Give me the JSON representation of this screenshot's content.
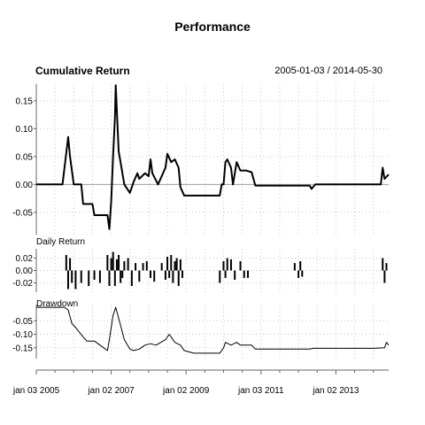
{
  "figure": {
    "title": "Performance",
    "date_range": "2005-01-03 / 2014-05-30"
  },
  "chart_data": [
    {
      "type": "line",
      "title": "Cumulative Return",
      "ylim": [
        -0.09,
        0.18
      ],
      "yticks": [
        0.15,
        0.1,
        0.05,
        0.0,
        -0.05
      ],
      "ytick_labels": [
        "0.15",
        "0.10",
        "0.05",
        "0.00",
        "-0.05"
      ],
      "baseline": 0,
      "grid": true,
      "series": [
        {
          "x": [
            2005.0,
            2005.7,
            2005.85,
            2005.9,
            2006.0,
            2006.1,
            2006.2,
            2006.25,
            2006.5,
            2006.55,
            2006.9,
            2006.95,
            2007.0,
            2007.05,
            2007.1,
            2007.12,
            2007.2,
            2007.35,
            2007.5,
            2007.6,
            2007.7,
            2007.75,
            2007.9,
            2008.0,
            2008.05,
            2008.1,
            2008.25,
            2008.45,
            2008.5,
            2008.6,
            2008.7,
            2008.8,
            2008.85,
            2008.95,
            2009.2,
            2009.5,
            2009.9,
            2009.95,
            2010.0,
            2010.05,
            2010.1,
            2010.2,
            2010.25,
            2010.35,
            2010.45,
            2010.5,
            2010.6,
            2010.75,
            2010.85,
            2011.5,
            2012.3,
            2012.35,
            2012.45,
            2014.0,
            2014.2,
            2014.25,
            2014.3,
            2014.41
          ],
          "y": [
            0,
            0,
            0.085,
            0.05,
            0,
            0,
            0,
            -0.035,
            -0.035,
            -0.055,
            -0.055,
            -0.08,
            -0.03,
            0.05,
            0.12,
            0.178,
            0.06,
            0,
            -0.015,
            0.005,
            0.02,
            0.01,
            0.02,
            0.015,
            0.045,
            0.02,
            0,
            0.03,
            0.055,
            0.04,
            0.045,
            0.03,
            -0.005,
            -0.02,
            -0.02,
            -0.02,
            -0.02,
            0,
            0,
            0.04,
            0.045,
            0.03,
            0,
            0.04,
            0.025,
            0.025,
            0.025,
            0.022,
            -0.002,
            -0.002,
            -0.002,
            -0.008,
            0,
            0,
            0,
            0.03,
            0.01,
            0.018
          ]
        }
      ]
    },
    {
      "type": "bar",
      "title": "Daily Return",
      "ylim": [
        -0.035,
        0.035
      ],
      "yticks": [
        0.02,
        0.0,
        -0.02
      ],
      "ytick_labels": [
        "0.02",
        "0.00",
        "-0.02"
      ],
      "grid": true,
      "x": [
        2005.8,
        2005.85,
        2005.9,
        2005.95,
        2006.05,
        2006.2,
        2006.4,
        2006.55,
        2006.7,
        2006.9,
        2006.95,
        2007.0,
        2007.05,
        2007.1,
        2007.15,
        2007.2,
        2007.25,
        2007.3,
        2007.35,
        2007.45,
        2007.55,
        2007.65,
        2007.75,
        2007.85,
        2007.95,
        2008.05,
        2008.15,
        2008.35,
        2008.45,
        2008.5,
        2008.55,
        2008.6,
        2008.65,
        2008.7,
        2008.75,
        2008.8,
        2008.85,
        2008.9,
        2009.9,
        2010.0,
        2010.05,
        2010.1,
        2010.2,
        2010.3,
        2010.45,
        2010.55,
        2010.65,
        2011.9,
        2012.0,
        2012.05,
        2012.1,
        2014.25,
        2014.3,
        2014.35
      ],
      "values": [
        0.025,
        -0.03,
        0.02,
        -0.02,
        -0.03,
        -0.02,
        -0.025,
        -0.015,
        -0.02,
        0.025,
        -0.025,
        0.02,
        0.03,
        -0.025,
        0.018,
        0.025,
        -0.02,
        -0.012,
        0.015,
        0.02,
        -0.025,
        0.012,
        -0.018,
        0.012,
        0.015,
        -0.012,
        -0.018,
        0.012,
        -0.015,
        0.022,
        -0.012,
        0.025,
        -0.02,
        0.015,
        0.02,
        -0.025,
        0.018,
        -0.012,
        -0.02,
        0.015,
        -0.012,
        0.02,
        0.018,
        -0.015,
        0.015,
        -0.012,
        -0.012,
        0.012,
        -0.012,
        0.015,
        -0.01,
        0.02,
        -0.02,
        0.012
      ]
    },
    {
      "type": "line",
      "title": "Drawdown",
      "ylim": [
        -0.19,
        0.01
      ],
      "yticks": [
        -0.05,
        -0.1,
        -0.15
      ],
      "ytick_labels": [
        "-0.05",
        "-0.10",
        "-0.15"
      ],
      "grid": true,
      "series": [
        {
          "x": [
            2005.0,
            2005.75,
            2005.85,
            2005.95,
            2006.05,
            2006.25,
            2006.35,
            2006.55,
            2006.75,
            2006.9,
            2006.95,
            2007.05,
            2007.12,
            2007.2,
            2007.35,
            2007.5,
            2007.6,
            2007.75,
            2007.9,
            2008.05,
            2008.2,
            2008.45,
            2008.55,
            2008.7,
            2008.85,
            2008.95,
            2009.2,
            2009.5,
            2009.9,
            2010.0,
            2010.05,
            2010.2,
            2010.35,
            2010.45,
            2010.6,
            2010.75,
            2010.85,
            2011.5,
            2012.3,
            2012.4,
            2014.0,
            2014.3,
            2014.35,
            2014.41
          ],
          "y": [
            0,
            0,
            -0.01,
            -0.06,
            -0.075,
            -0.11,
            -0.125,
            -0.125,
            -0.145,
            -0.16,
            -0.12,
            -0.03,
            0,
            -0.04,
            -0.12,
            -0.155,
            -0.16,
            -0.155,
            -0.14,
            -0.135,
            -0.14,
            -0.12,
            -0.1,
            -0.13,
            -0.14,
            -0.16,
            -0.17,
            -0.17,
            -0.17,
            -0.15,
            -0.13,
            -0.14,
            -0.13,
            -0.14,
            -0.14,
            -0.14,
            -0.155,
            -0.155,
            -0.155,
            -0.152,
            -0.152,
            -0.15,
            -0.13,
            -0.14
          ]
        }
      ]
    }
  ],
  "x_axis": {
    "range": [
      2005.0,
      2014.41
    ],
    "tick_positions": [
      2005.0,
      2007.0,
      2009.0,
      2011.0,
      2013.0
    ],
    "tick_labels": [
      "jan 03 2005",
      "jan 02 2007",
      "jan 02 2009",
      "jan 03 2011",
      "jan 02 2013"
    ],
    "minor_ticks": [
      2005.5,
      2006.0,
      2006.5,
      2007.5,
      2008.0,
      2008.5,
      2009.5,
      2010.0,
      2010.5,
      2011.5,
      2012.0,
      2012.5,
      2013.5,
      2014.0
    ],
    "grid_positions": [
      2005.0,
      2005.5,
      2006.0,
      2006.5,
      2007.0,
      2007.5,
      2008.0,
      2008.5,
      2009.0,
      2009.5,
      2010.0,
      2010.5,
      2011.0,
      2011.5,
      2012.0,
      2012.5,
      2013.0,
      2013.5,
      2014.0
    ]
  },
  "colors": {
    "line": "#000000",
    "baseline": "#a0a0a0",
    "grid": "#c8c8c8",
    "axis": "#666666"
  }
}
